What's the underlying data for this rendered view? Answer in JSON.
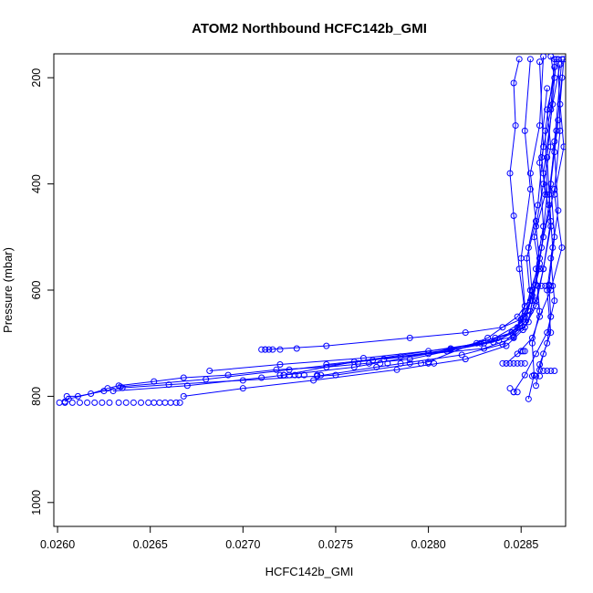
{
  "chart_data": {
    "type": "line",
    "title": "ATOM2 Northbound HCFC142b_GMI",
    "xlabel": "HCFC142b_GMI",
    "ylabel": "Pressure (mbar)",
    "xlim": [
      0.02598,
      0.02874
    ],
    "ylim": [
      1045,
      155
    ],
    "y_inverted": true,
    "x_ticks": [
      0.026,
      0.0265,
      0.027,
      0.0275,
      0.028,
      0.0285
    ],
    "x_tick_labels": [
      "0.0260",
      "0.0265",
      "0.0270",
      "0.0275",
      "0.0280",
      "0.0285"
    ],
    "y_ticks": [
      200,
      400,
      600,
      800,
      1000
    ],
    "y_tick_labels": [
      "200",
      "400",
      "600",
      "800",
      "1000"
    ],
    "grid": false,
    "legend": null,
    "series_color": "#0000ff",
    "markers": "open-circle",
    "series": [
      {
        "x": [
          0.02604,
          0.02606,
          0.02618,
          0.02627,
          0.02633,
          0.02652,
          0.02668,
          0.02692,
          0.02718,
          0.02745,
          0.0279,
          0.0283,
          0.02845,
          0.02852,
          0.02855,
          0.0286,
          0.02858,
          0.02862,
          0.02866,
          0.02864,
          0.02868,
          0.02866
        ],
        "y": [
          810,
          805,
          795,
          785,
          780,
          772,
          765,
          760,
          750,
          745,
          730,
          700,
          680,
          650,
          600,
          550,
          480,
          400,
          330,
          260,
          200,
          160
        ]
      },
      {
        "x": [
          0.02605,
          0.02611,
          0.02625,
          0.02635,
          0.0266,
          0.027,
          0.0275,
          0.028,
          0.02832,
          0.02848,
          0.02856,
          0.0286,
          0.02857,
          0.02863,
          0.02861,
          0.02866,
          0.02868
        ],
        "y": [
          800,
          800,
          790,
          784,
          778,
          770,
          760,
          735,
          690,
          650,
          610,
          560,
          500,
          420,
          350,
          260,
          165
        ]
      },
      {
        "x": [
          0.0263,
          0.0267,
          0.0271,
          0.0276,
          0.028,
          0.02826,
          0.02845,
          0.02852,
          0.02856,
          0.02854,
          0.02859,
          0.02862,
          0.0286
        ],
        "y": [
          790,
          780,
          765,
          745,
          720,
          700,
          680,
          660,
          610,
          520,
          440,
          330,
          170
        ]
      },
      {
        "x": [
          0.02634,
          0.0268,
          0.02725,
          0.0277,
          0.02812,
          0.02836,
          0.0285,
          0.02855,
          0.02853,
          0.02858,
          0.02855,
          0.0286,
          0.02862
        ],
        "y": [
          782,
          768,
          750,
          732,
          712,
          690,
          662,
          620,
          540,
          470,
          380,
          290,
          160
        ]
      },
      {
        "x": [
          0.02668,
          0.027,
          0.02738,
          0.02783,
          0.0282,
          0.02842,
          0.02851,
          0.02858,
          0.02862,
          0.02866,
          0.02864,
          0.02869
        ],
        "y": [
          800,
          785,
          770,
          750,
          730,
          705,
          675,
          630,
          560,
          470,
          350,
          165
        ]
      },
      {
        "x": [
          0.02712,
          0.02745,
          0.0279,
          0.0282,
          0.0284,
          0.0285,
          0.02855,
          0.02858,
          0.02862,
          0.02868,
          0.02871,
          0.0287
        ],
        "y": [
          712,
          705,
          690,
          680,
          670,
          655,
          640,
          590,
          500,
          410,
          300,
          165
        ]
      },
      {
        "x": [
          0.02722,
          0.0276,
          0.028,
          0.02828,
          0.02846,
          0.02854,
          0.02856,
          0.0286,
          0.02865,
          0.02868,
          0.02872
        ],
        "y": [
          760,
          735,
          715,
          700,
          688,
          660,
          620,
          540,
          440,
          320,
          165
        ]
      },
      {
        "x": [
          0.02682,
          0.0272,
          0.02765,
          0.02812,
          0.02838,
          0.02848,
          0.02852,
          0.0285,
          0.02855,
          0.02852,
          0.02855
        ],
        "y": [
          752,
          740,
          728,
          710,
          695,
          670,
          630,
          540,
          410,
          300,
          165
        ]
      },
      {
        "x": [
          0.02745,
          0.02785,
          0.0283,
          0.02846,
          0.02852,
          0.02849,
          0.02846,
          0.02844,
          0.02847,
          0.02846,
          0.02849
        ],
        "y": [
          740,
          725,
          710,
          690,
          640,
          560,
          460,
          380,
          290,
          210,
          165
        ]
      },
      {
        "x": [
          0.02776,
          0.0281,
          0.02835,
          0.02852,
          0.02858,
          0.02862,
          0.02866,
          0.02862,
          0.02867,
          0.02871
        ],
        "y": [
          730,
          715,
          698,
          670,
          620,
          560,
          480,
          380,
          250,
          175
        ]
      },
      {
        "x": [
          0.0274,
          0.02772,
          0.02818,
          0.0284,
          0.02852,
          0.02856,
          0.02861,
          0.02864,
          0.02863,
          0.02868
        ],
        "y": [
          762,
          745,
          722,
          702,
          660,
          600,
          520,
          420,
          300,
          180
        ]
      },
      {
        "x": [
          0.02842,
          0.02848,
          0.02856,
          0.0286,
          0.02866,
          0.02872,
          0.02868,
          0.02873,
          0.02871,
          0.02873
        ],
        "y": [
          738,
          720,
          690,
          650,
          600,
          520,
          420,
          330,
          250,
          165
        ]
      },
      {
        "x": [
          0.02846,
          0.02852,
          0.02858,
          0.02864,
          0.02868,
          0.02866,
          0.0287,
          0.02868,
          0.02872
        ],
        "y": [
          792,
          760,
          720,
          680,
          620,
          540,
          450,
          340,
          200
        ]
      },
      {
        "x": [
          0.02854,
          0.02857,
          0.02856,
          0.0286,
          0.02858,
          0.02862,
          0.0286,
          0.02864
        ],
        "y": [
          805,
          760,
          700,
          640,
          560,
          480,
          360,
          220
        ]
      },
      {
        "x": [
          0.02858,
          0.0286,
          0.02864,
          0.02866,
          0.02865,
          0.02868,
          0.02866,
          0.0287
        ],
        "y": [
          780,
          740,
          700,
          650,
          590,
          500,
          400,
          280
        ]
      },
      {
        "x": [
          0.0286,
          0.02862,
          0.02866,
          0.02864,
          0.02867,
          0.02865,
          0.02869
        ],
        "y": [
          750,
          720,
          680,
          600,
          520,
          420,
          300
        ]
      }
    ],
    "scatter_only": [
      {
        "x": [
          0.02601,
          0.02604,
          0.02608,
          0.02612,
          0.02616,
          0.0262,
          0.02624,
          0.02628,
          0.02633,
          0.02637,
          0.02641,
          0.02645,
          0.02649,
          0.02652,
          0.02655,
          0.02658,
          0.02661,
          0.02664,
          0.02666
        ],
        "y": [
          812,
          812,
          812,
          812,
          812,
          812,
          812,
          812,
          812,
          812,
          812,
          812,
          812,
          812,
          812,
          812,
          812,
          812,
          812
        ]
      },
      {
        "x": [
          0.0271,
          0.02712,
          0.02714,
          0.02716,
          0.0272,
          0.02729
        ],
        "y": [
          712,
          712,
          712,
          712,
          712,
          710
        ]
      },
      {
        "x": [
          0.0272,
          0.02722,
          0.02725,
          0.02728,
          0.0273,
          0.02733,
          0.0274,
          0.02742
        ],
        "y": [
          760,
          760,
          760,
          760,
          760,
          760,
          760,
          760
        ]
      },
      {
        "x": [
          0.02762,
          0.02768,
          0.02774,
          0.02778,
          0.02785,
          0.0279,
          0.02796,
          0.028,
          0.02803
        ],
        "y": [
          738,
          738,
          738,
          738,
          738,
          738,
          738,
          738,
          738
        ]
      },
      {
        "x": [
          0.0284,
          0.02842,
          0.02844,
          0.02846,
          0.02848,
          0.0285,
          0.02852
        ],
        "y": [
          738,
          738,
          738,
          738,
          738,
          738,
          738
        ]
      },
      {
        "x": [
          0.0285,
          0.02851,
          0.02852
        ],
        "y": [
          715,
          715,
          715
        ]
      },
      {
        "x": [
          0.02859,
          0.02861,
          0.02863,
          0.02865,
          0.02867
        ],
        "y": [
          592,
          592,
          592,
          592,
          592
        ]
      },
      {
        "x": [
          0.02862,
          0.02864,
          0.02866,
          0.02868
        ],
        "y": [
          752,
          752,
          752,
          752
        ]
      },
      {
        "x": [
          0.02856,
          0.02858,
          0.0286
        ],
        "y": [
          762,
          762,
          762
        ]
      },
      {
        "x": [
          0.02844,
          0.02846,
          0.02848
        ],
        "y": [
          785,
          792,
          792
        ]
      }
    ]
  }
}
